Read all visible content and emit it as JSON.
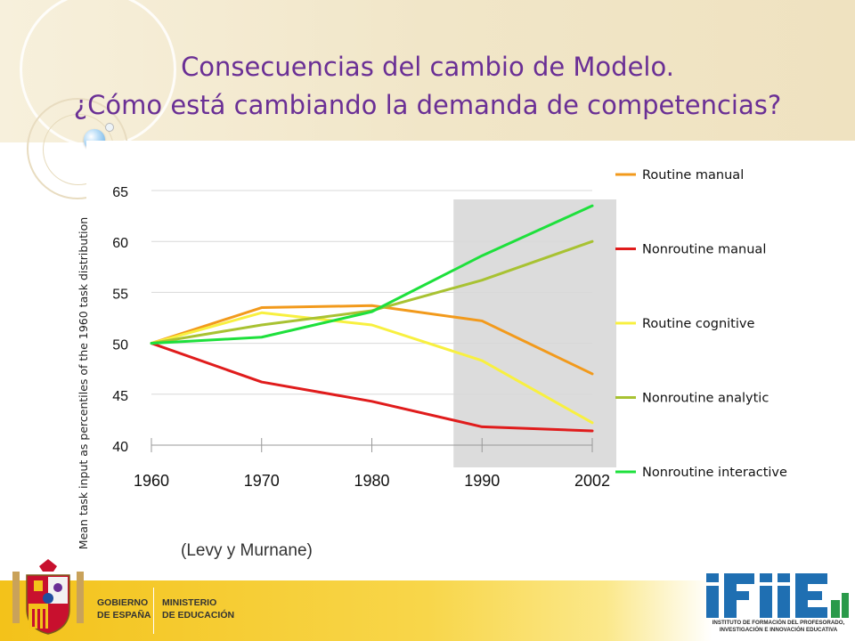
{
  "slide": {
    "title_line1": "Consecuencias del cambio de Modelo.",
    "title_line2": "¿Cómo está cambiando la demanda de competencias?",
    "source_note": "(Levy y Murnane)",
    "footer": {
      "gov_line1": "GOBIERNO",
      "gov_line2": "DE ESPAÑA",
      "ministry_line1": "MINISTERIO",
      "ministry_line2": "DE EDUCACIÓN",
      "logo_line1": "INSTITUTO DE FORMACIÓN DEL PROFESORADO,",
      "logo_line2": "INVESTIGACIÓN E INNOVACIÓN EDUCATIVA"
    },
    "colors": {
      "title": "#6a2f95",
      "footer_band": "#f3c21a",
      "logo_blue": "#1f6fb2"
    },
    "icons": [
      "coat-of-arms-icon",
      "ifiie-logo-icon",
      "bubble-decoration-icon"
    ]
  },
  "chart_data": {
    "type": "line",
    "title": "",
    "xlabel": "",
    "ylabel": "Mean task input as percentiles of  the 1960 task distribution",
    "categories": [
      "1960",
      "1970",
      "1980",
      "1990",
      "2002"
    ],
    "ylim": [
      40,
      65
    ],
    "yticks": [
      40,
      45,
      50,
      55,
      60,
      65
    ],
    "grid": "horizontal",
    "legend_position": "right",
    "highlight": {
      "from": "1990",
      "to": "2002",
      "color": "#dcdcdc"
    },
    "series": [
      {
        "name": "Routine manual",
        "color": "#f29a1c",
        "values": [
          50,
          53.5,
          53.7,
          52.2,
          47
        ]
      },
      {
        "name": "Nonroutine manual",
        "color": "#e01c1c",
        "values": [
          50,
          46.2,
          44.3,
          41.8,
          41.4
        ]
      },
      {
        "name": "Routine cognitive",
        "color": "#f8f040",
        "values": [
          50,
          53,
          51.8,
          48.3,
          42.2
        ]
      },
      {
        "name": "Nonroutine analytic",
        "color": "#a8c232",
        "values": [
          50,
          51.8,
          53.2,
          56.2,
          60
        ]
      },
      {
        "name": "Nonroutine interactive",
        "color": "#1ee03c",
        "values": [
          50,
          50.6,
          53.1,
          58.6,
          63.5
        ]
      }
    ]
  }
}
